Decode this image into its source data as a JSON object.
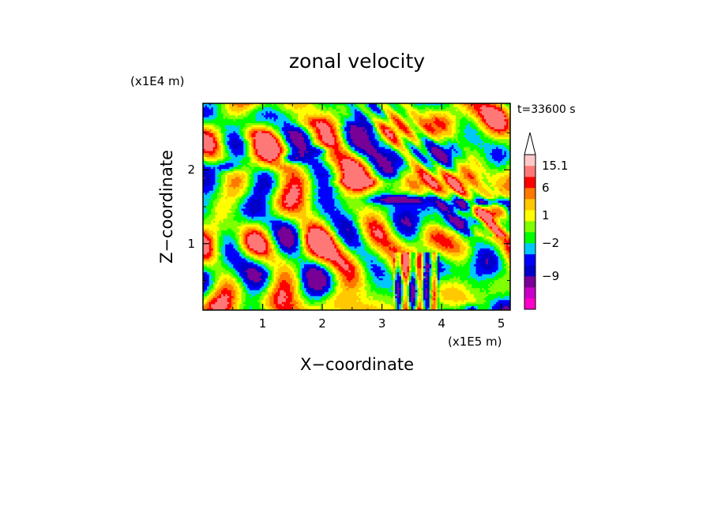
{
  "chart_data": {
    "type": "heatmap",
    "title": "zonal velocity",
    "xlabel": "X−coordinate",
    "ylabel": "Z−coordinate",
    "x_unit": "(x1E5 m)",
    "y_unit": "(x1E4 m)",
    "time_label": "t=33600 s",
    "xlim": [
      0,
      5.15
    ],
    "ylim": [
      0.1,
      2.9
    ],
    "x_ticks": [
      {
        "value": 1,
        "label": "1"
      },
      {
        "value": 2,
        "label": "2"
      },
      {
        "value": 3,
        "label": "3"
      },
      {
        "value": 4,
        "label": "4"
      },
      {
        "value": 5,
        "label": "5"
      }
    ],
    "y_ticks": [
      {
        "value": 1,
        "label": "1"
      },
      {
        "value": 2,
        "label": "2"
      }
    ],
    "colorbar": {
      "colors": [
        "#ff00c8",
        "#c800c8",
        "#780096",
        "#0000c8",
        "#0000ff",
        "#00c8ff",
        "#00ff00",
        "#80ff00",
        "#ffff00",
        "#ffc800",
        "#ff7800",
        "#ff0000",
        "#ff7878",
        "#ffc8c8"
      ],
      "labels": [
        {
          "label": "15.1",
          "level": 13
        },
        {
          "label": "6",
          "level": 11
        },
        {
          "label": "1",
          "level": 8.5
        },
        {
          "label": "−2",
          "level": 6
        },
        {
          "label": "−9",
          "level": 3
        }
      ]
    }
  }
}
